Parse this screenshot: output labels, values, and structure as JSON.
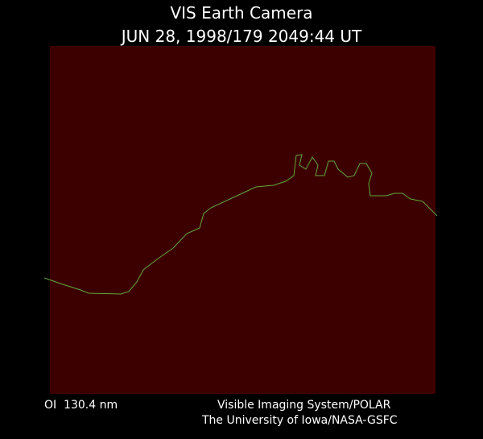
{
  "header": {
    "title": "VIS Earth Camera",
    "timestamp": "JUN 28, 1998/179 2049:44 UT"
  },
  "footer": {
    "filter": "OI  130.4 nm",
    "instrument": "Visible Imaging System/POLAR",
    "institution": "The University of Iowa/NASA-GSFC"
  }
}
